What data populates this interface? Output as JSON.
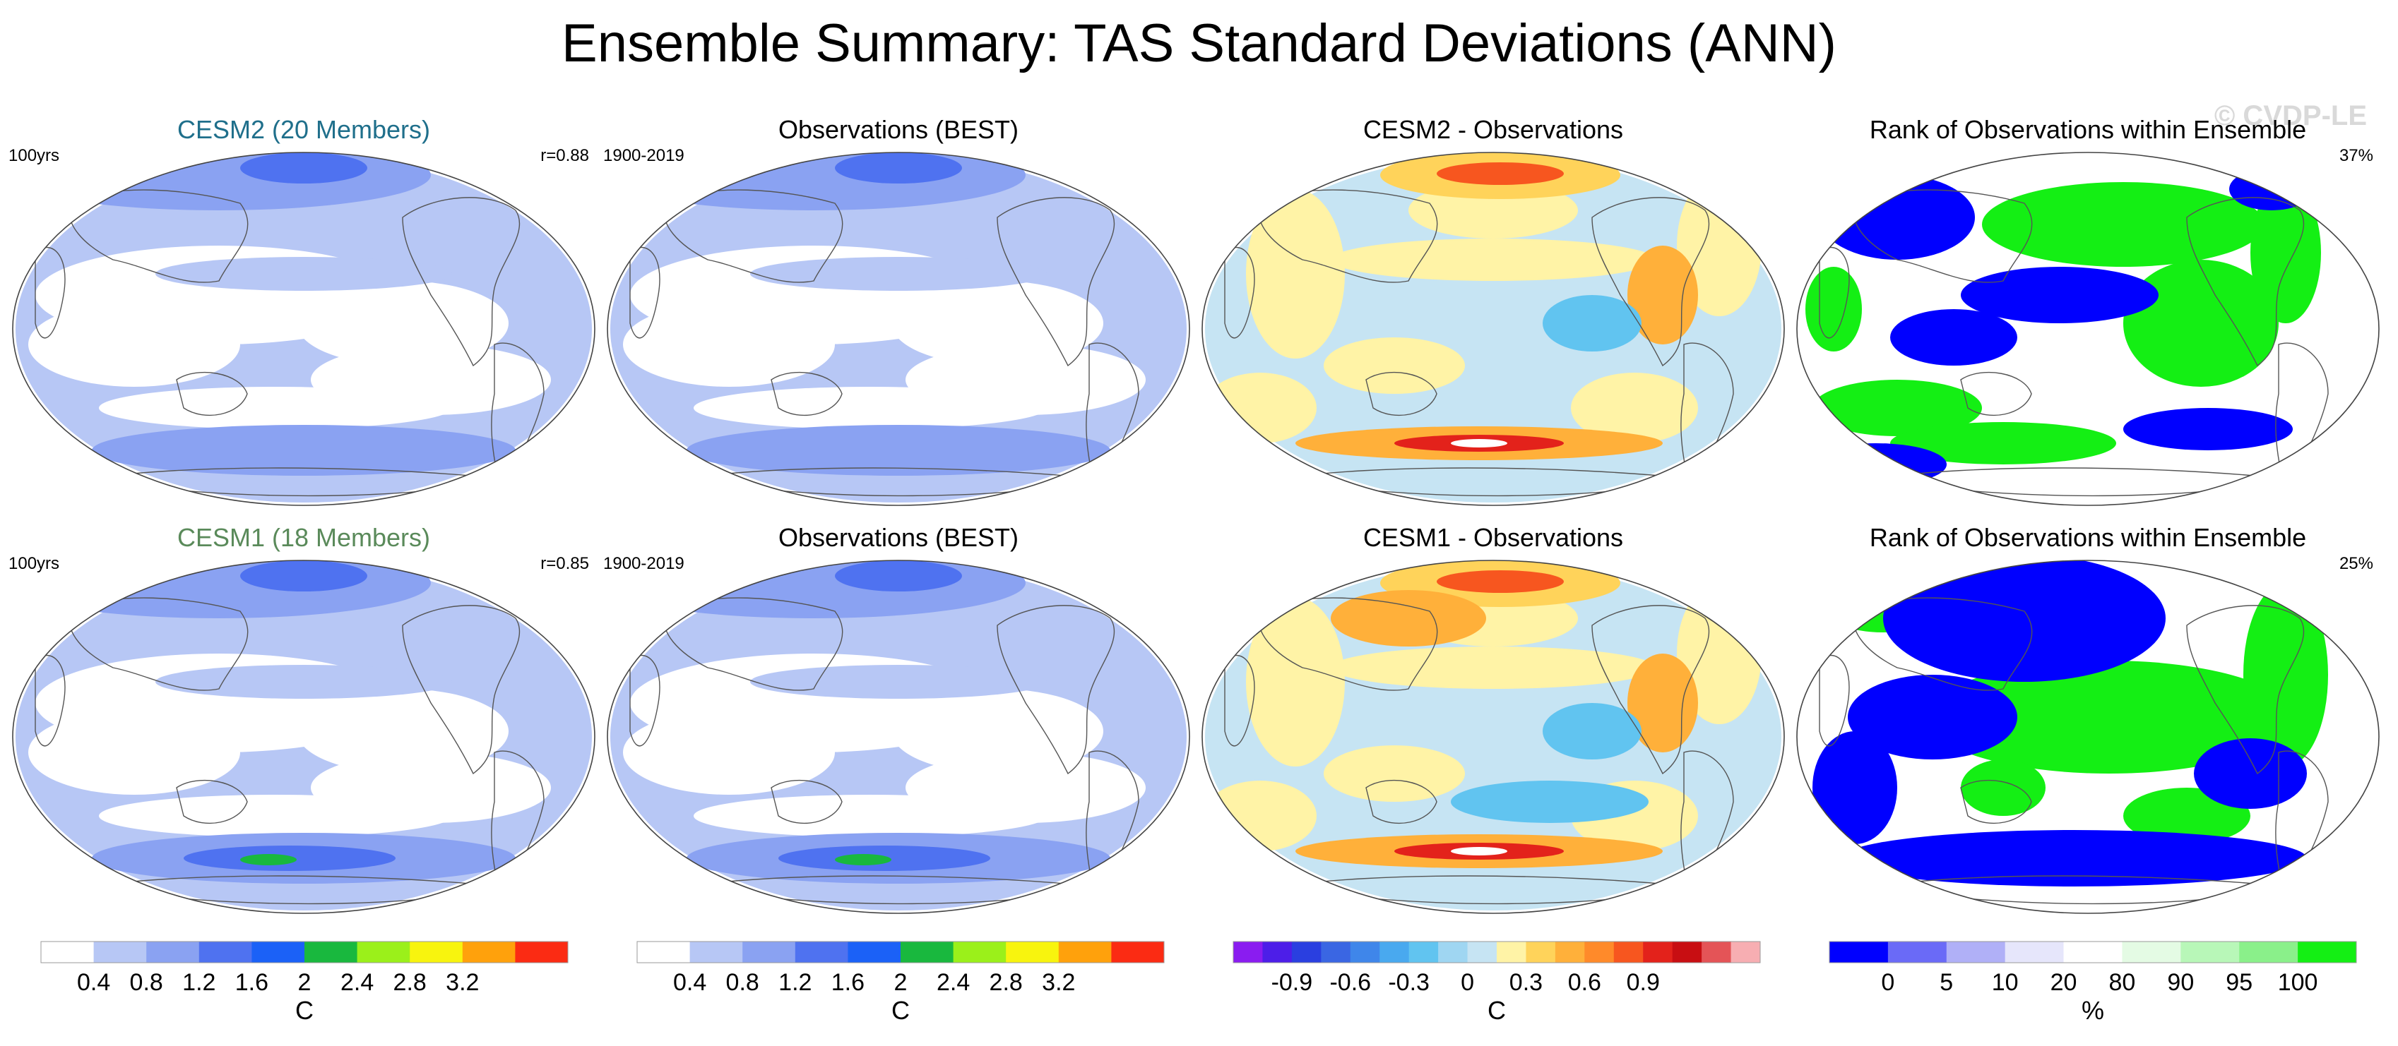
{
  "title": "Ensemble Summary: TAS Standard Deviations (ANN)",
  "watermark": "© CVDP-LE",
  "chart_data": {
    "type": "heatmap",
    "title": "Ensemble Summary: TAS Standard Deviations (ANN)",
    "rows": [
      {
        "panels": [
          {
            "title": "CESM2 (20 Members)",
            "title_color": "#1f6f8b",
            "left_label": "100yrs",
            "right_label": "r=0.88",
            "colormap": "std"
          },
          {
            "title": "Observations (BEST)",
            "title_color": "#000000",
            "left_label": "1900-2019",
            "right_label": "",
            "colormap": "std"
          },
          {
            "title": "CESM2 - Observations",
            "title_color": "#000000",
            "left_label": "",
            "right_label": "",
            "colormap": "diff"
          },
          {
            "title": "Rank of Observations within Ensemble",
            "title_color": "#000000",
            "left_label": "",
            "right_label": "37%",
            "colormap": "rank"
          }
        ]
      },
      {
        "panels": [
          {
            "title": "CESM1 (18 Members)",
            "title_color": "#5a8a5a",
            "left_label": "100yrs",
            "right_label": "r=0.85",
            "colormap": "std"
          },
          {
            "title": "Observations (BEST)",
            "title_color": "#000000",
            "left_label": "1900-2019",
            "right_label": "",
            "colormap": "std"
          },
          {
            "title": "CESM1 - Observations",
            "title_color": "#000000",
            "left_label": "",
            "right_label": "",
            "colormap": "diff"
          },
          {
            "title": "Rank of Observations within Ensemble",
            "title_color": "#000000",
            "left_label": "",
            "right_label": "25%",
            "colormap": "rank"
          }
        ]
      }
    ],
    "colorbars": [
      {
        "id": "std1",
        "unit": "C",
        "levels": [
          0.4,
          0.8,
          1.2,
          1.6,
          2,
          2.4,
          2.8,
          3.2
        ],
        "labels": [
          "0.4",
          "0.8",
          "1.2",
          "1.6",
          "2",
          "2.4",
          "2.8",
          "3.2"
        ],
        "colors": [
          "#ffffff",
          "#b7c7f5",
          "#8aa2f2",
          "#4f72f0",
          "#1b61f7",
          "#19b83e",
          "#9bf01a",
          "#f8f40e",
          "#ffa10c",
          "#fb2b13"
        ]
      },
      {
        "id": "std2",
        "unit": "C",
        "levels": [
          0.4,
          0.8,
          1.2,
          1.6,
          2,
          2.4,
          2.8,
          3.2
        ],
        "labels": [
          "0.4",
          "0.8",
          "1.2",
          "1.6",
          "2",
          "2.4",
          "2.8",
          "3.2"
        ],
        "colors": [
          "#ffffff",
          "#b7c7f5",
          "#8aa2f2",
          "#4f72f0",
          "#1b61f7",
          "#19b83e",
          "#9bf01a",
          "#f8f40e",
          "#ffa10c",
          "#fb2b13"
        ]
      },
      {
        "id": "diff",
        "unit": "C",
        "levels": [
          -1.05,
          -0.9,
          -0.75,
          -0.6,
          -0.45,
          -0.3,
          -0.15,
          0,
          0.15,
          0.3,
          0.45,
          0.6,
          0.75,
          0.9,
          1.05
        ],
        "labels": [
          "-0.9",
          "-0.6",
          "-0.3",
          "0",
          "0.3",
          "0.6",
          "0.9"
        ],
        "label_levels": [
          -0.9,
          -0.6,
          -0.3,
          0,
          0.3,
          0.6,
          0.9
        ],
        "colors": [
          "#8a1cf0",
          "#4d1ee8",
          "#2a3fe0",
          "#3a66e3",
          "#3f86ea",
          "#49a9ef",
          "#61c4f0",
          "#9fd6f2",
          "#c6e4f3",
          "#fff3a6",
          "#ffd35a",
          "#ffb03a",
          "#ff8a2a",
          "#f7561f",
          "#e3221b",
          "#c80e12",
          "#e45457",
          "#f7aeb2"
        ]
      },
      {
        "id": "rank",
        "unit": "%",
        "levels": [
          0,
          5,
          10,
          20,
          80,
          90,
          95,
          100
        ],
        "labels": [
          "0",
          "5",
          "10",
          "20",
          "80",
          "90",
          "95",
          "100"
        ],
        "colors": [
          "#0000ff",
          "#6a6af7",
          "#b0b0f7",
          "#e6e6fb",
          "#ffffff",
          "#e4fbe4",
          "#b8f7b8",
          "#8af08a",
          "#14ef14"
        ]
      }
    ]
  }
}
